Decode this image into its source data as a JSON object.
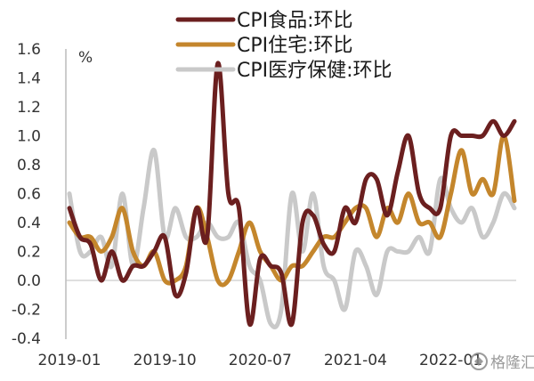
{
  "chart_data": {
    "type": "line",
    "unit": "%",
    "ylim": [
      -0.4,
      1.6
    ],
    "y_ticks": [
      "1.6",
      "1.4",
      "1.2",
      "1.0",
      "0.8",
      "0.6",
      "0.4",
      "0.2",
      "0.0",
      "-0.2",
      "-0.4"
    ],
    "x_ticks": [
      "2019-01",
      "2019-10",
      "2020-07",
      "2021-04",
      "2022-01"
    ],
    "grid": false,
    "legend_position": "top",
    "x": [
      "2019-01",
      "2019-02",
      "2019-03",
      "2019-04",
      "2019-05",
      "2019-06",
      "2019-07",
      "2019-08",
      "2019-09",
      "2019-10",
      "2019-11",
      "2019-12",
      "2020-01",
      "2020-02",
      "2020-03",
      "2020-04",
      "2020-05",
      "2020-06",
      "2020-07",
      "2020-08",
      "2020-09",
      "2020-10",
      "2020-11",
      "2020-12",
      "2021-01",
      "2021-02",
      "2021-03",
      "2021-04",
      "2021-05",
      "2021-06",
      "2021-07",
      "2021-08",
      "2021-09",
      "2021-10",
      "2021-11",
      "2021-12",
      "2022-01",
      "2022-02",
      "2022-03",
      "2022-04",
      "2022-05",
      "2022-06",
      "2022-07"
    ],
    "series": [
      {
        "name": "CPI食品:环比",
        "color": "#6b1f1f",
        "values": [
          0.5,
          0.3,
          0.25,
          0.0,
          0.2,
          0.0,
          0.1,
          0.1,
          0.2,
          0.3,
          -0.1,
          0.05,
          0.5,
          0.3,
          1.5,
          0.6,
          0.5,
          -0.3,
          0.15,
          0.1,
          0.05,
          -0.3,
          0.4,
          0.45,
          0.25,
          0.2,
          0.5,
          0.4,
          0.7,
          0.7,
          0.45,
          0.75,
          1.0,
          0.6,
          0.5,
          0.5,
          1.0,
          1.0,
          1.0,
          1.0,
          1.1,
          1.0,
          1.1
        ]
      },
      {
        "name": "CPI住宅:环比",
        "color": "#c4862c",
        "values": [
          0.4,
          0.3,
          0.3,
          0.2,
          0.3,
          0.5,
          0.2,
          0.1,
          0.2,
          0.0,
          0.0,
          0.1,
          0.5,
          0.3,
          0.0,
          0.0,
          0.2,
          0.4,
          0.2,
          0.1,
          0.0,
          0.1,
          0.1,
          0.2,
          0.3,
          0.3,
          0.4,
          0.5,
          0.5,
          0.3,
          0.5,
          0.4,
          0.6,
          0.4,
          0.4,
          0.3,
          0.6,
          0.9,
          0.6,
          0.7,
          0.6,
          1.0,
          0.55
        ]
      },
      {
        "name": "CPI医疗保健:环比",
        "color": "#c9c9c9",
        "values": [
          0.6,
          0.2,
          0.2,
          0.3,
          0.1,
          0.6,
          0.1,
          0.5,
          0.9,
          0.3,
          0.5,
          0.3,
          0.3,
          0.4,
          0.3,
          0.3,
          0.4,
          0.1,
          0.0,
          -0.3,
          -0.2,
          0.6,
          0.2,
          0.6,
          0.1,
          0.0,
          -0.2,
          0.2,
          0.1,
          -0.1,
          0.2,
          0.2,
          0.2,
          0.3,
          0.2,
          0.7,
          0.5,
          0.4,
          0.5,
          0.3,
          0.4,
          0.6,
          0.5
        ]
      }
    ]
  },
  "watermark": "格隆汇"
}
